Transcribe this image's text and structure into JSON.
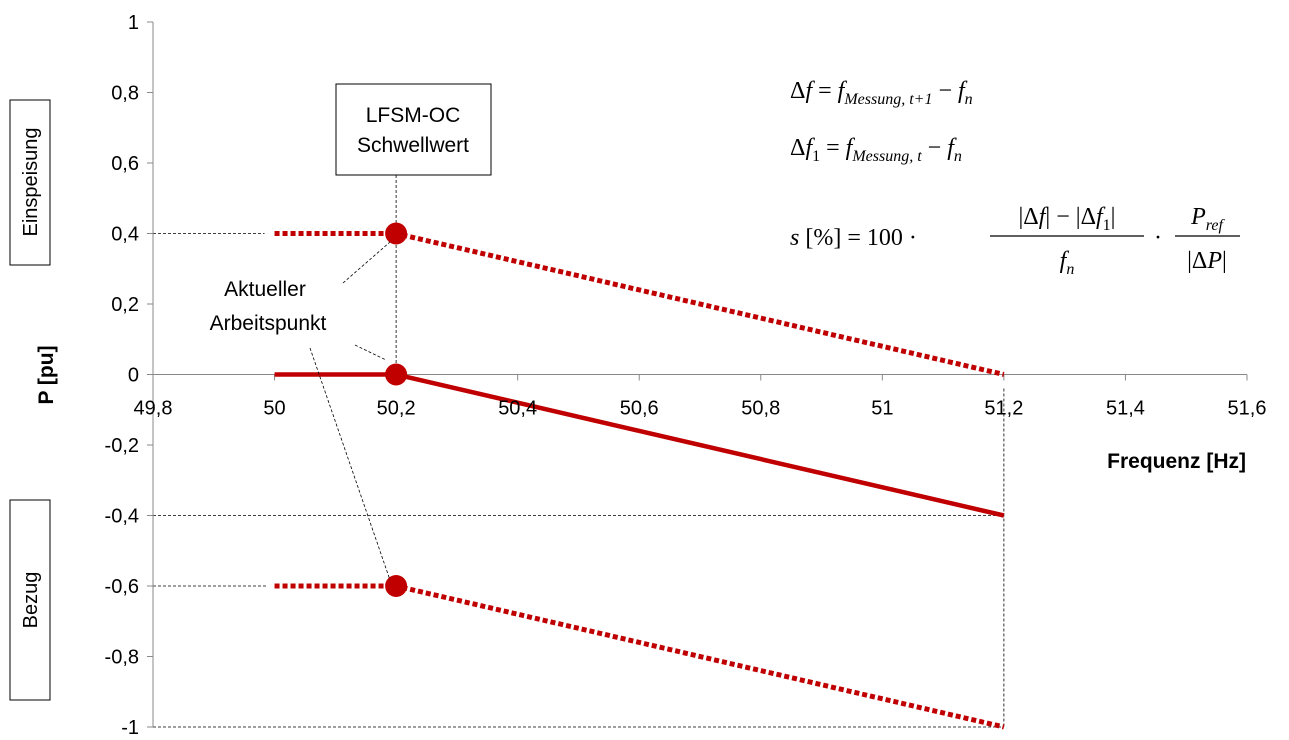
{
  "chart_data": {
    "type": "line",
    "title": "",
    "xlabel": "Frequenz [Hz]",
    "ylabel": "P [pu]",
    "xlim": [
      49.8,
      51.6
    ],
    "ylim": [
      -1,
      1
    ],
    "x_ticks": [
      "49,8",
      "50",
      "50,2",
      "50,4",
      "50,6",
      "50,8",
      "51",
      "51,2",
      "51,4",
      "51,6"
    ],
    "x_tick_values": [
      49.8,
      50,
      50.2,
      50.4,
      50.6,
      50.8,
      51,
      51.2,
      51.4,
      51.6
    ],
    "y_ticks": [
      "1",
      "0,8",
      "0,6",
      "0,4",
      "0,2",
      "0",
      "-0,2",
      "-0,4",
      "-0,6",
      "-0,8",
      "-1"
    ],
    "y_tick_values": [
      1,
      0.8,
      0.6,
      0.4,
      0.2,
      0,
      -0.2,
      -0.4,
      -0.6,
      -0.8,
      -1
    ],
    "grid": false,
    "legend": "none",
    "series_color": "#c00000",
    "series": [
      {
        "style": "solid",
        "x": [
          50.0,
          50.2,
          51.2
        ],
        "y": [
          0.0,
          0.0,
          -0.4
        ]
      },
      {
        "style": "dotted",
        "x": [
          50.0,
          50.2,
          51.2
        ],
        "y": [
          0.4,
          0.4,
          0.0
        ]
      },
      {
        "style": "dotted",
        "x": [
          50.0,
          50.2,
          51.2
        ],
        "y": [
          -0.6,
          -0.6,
          -1.0
        ]
      }
    ],
    "markers": [
      {
        "x": 50.2,
        "y": 0.4
      },
      {
        "x": 50.2,
        "y": 0.0
      },
      {
        "x": 50.2,
        "y": -0.6
      }
    ],
    "guide_lines": {
      "horizontal": [
        0.4,
        -0.4,
        -0.6,
        -1.0
      ],
      "vertical": [
        50.2,
        51.2
      ]
    },
    "annotations": {
      "threshold_line1": "LFSM-OC",
      "threshold_line2": "Schwellwert",
      "operating_point_line1": "Aktueller",
      "operating_point_line2": "Arbeitspunkt",
      "feed_in_label": "Einspeisung",
      "consumption_label": "Bezug"
    },
    "formulas": {
      "delta_f": "Δf = f_{Messung, t+1} − f_n",
      "delta_f1": "Δf_1 = f_{Messung, t} − f_n",
      "slope": "s [%] = 100 · (|Δf| − |Δf_1|) / f_n · P_ref / |ΔP|"
    }
  }
}
